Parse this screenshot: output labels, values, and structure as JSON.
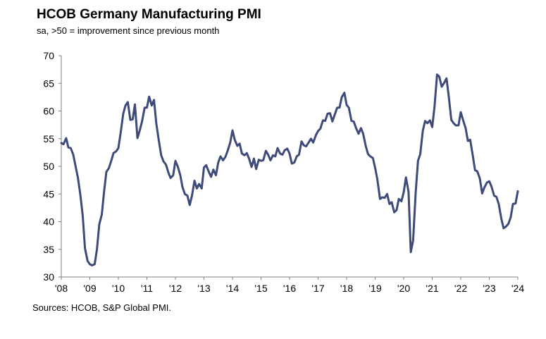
{
  "title": "HCOB Germany Manufacturing PMI",
  "subtitle": "sa, >50 = improvement since previous month",
  "source": "Sources: HCOB, S&P Global PMI.",
  "chart_data": {
    "type": "line",
    "line_color": "#3d4a7a",
    "grid": false,
    "xlim": [
      2008,
      2024
    ],
    "ylim": [
      30,
      70
    ],
    "x_ticks": [
      {
        "x": 2008,
        "label": "'08"
      },
      {
        "x": 2009,
        "label": "'09"
      },
      {
        "x": 2010,
        "label": "'10"
      },
      {
        "x": 2011,
        "label": "'11"
      },
      {
        "x": 2012,
        "label": "'12"
      },
      {
        "x": 2013,
        "label": "'13"
      },
      {
        "x": 2014,
        "label": "'14"
      },
      {
        "x": 2015,
        "label": "'15"
      },
      {
        "x": 2016,
        "label": "'16"
      },
      {
        "x": 2017,
        "label": "'17"
      },
      {
        "x": 2018,
        "label": "'18"
      },
      {
        "x": 2019,
        "label": "'19"
      },
      {
        "x": 2020,
        "label": "'20"
      },
      {
        "x": 2021,
        "label": "'21"
      },
      {
        "x": 2022,
        "label": "'22"
      },
      {
        "x": 2023,
        "label": "'23"
      },
      {
        "x": 2024,
        "label": "'24"
      }
    ],
    "y_ticks": [
      30,
      35,
      40,
      45,
      50,
      55,
      60,
      65,
      70
    ],
    "series": [
      {
        "x": [
          2008.0,
          2008.08,
          2008.17,
          2008.25,
          2008.33,
          2008.42,
          2008.5,
          2008.58,
          2008.67,
          2008.75,
          2008.83,
          2008.92,
          2009.0,
          2009.08,
          2009.17,
          2009.25,
          2009.33,
          2009.42,
          2009.5,
          2009.58,
          2009.67,
          2009.75,
          2009.83,
          2009.92,
          2010.0,
          2010.08,
          2010.17,
          2010.25,
          2010.33,
          2010.42,
          2010.5,
          2010.58,
          2010.67,
          2010.75,
          2010.83,
          2010.92,
          2011.0,
          2011.08,
          2011.17,
          2011.25,
          2011.33,
          2011.42,
          2011.5,
          2011.58,
          2011.67,
          2011.75,
          2011.83,
          2011.92,
          2012.0,
          2012.08,
          2012.17,
          2012.25,
          2012.33,
          2012.42,
          2012.5,
          2012.58,
          2012.67,
          2012.75,
          2012.83,
          2012.92,
          2013.0,
          2013.08,
          2013.17,
          2013.25,
          2013.33,
          2013.42,
          2013.5,
          2013.58,
          2013.67,
          2013.75,
          2013.83,
          2013.92,
          2014.0,
          2014.08,
          2014.17,
          2014.25,
          2014.33,
          2014.42,
          2014.5,
          2014.58,
          2014.67,
          2014.75,
          2014.83,
          2014.92,
          2015.0,
          2015.08,
          2015.17,
          2015.25,
          2015.33,
          2015.42,
          2015.5,
          2015.58,
          2015.67,
          2015.75,
          2015.83,
          2015.92,
          2016.0,
          2016.08,
          2016.17,
          2016.25,
          2016.33,
          2016.42,
          2016.5,
          2016.58,
          2016.67,
          2016.75,
          2016.83,
          2016.92,
          2017.0,
          2017.08,
          2017.17,
          2017.25,
          2017.33,
          2017.42,
          2017.5,
          2017.58,
          2017.67,
          2017.75,
          2017.83,
          2017.92,
          2018.0,
          2018.08,
          2018.17,
          2018.25,
          2018.33,
          2018.42,
          2018.5,
          2018.58,
          2018.67,
          2018.75,
          2018.83,
          2018.92,
          2019.0,
          2019.08,
          2019.17,
          2019.25,
          2019.33,
          2019.42,
          2019.5,
          2019.58,
          2019.67,
          2019.75,
          2019.83,
          2019.92,
          2020.0,
          2020.08,
          2020.17,
          2020.25,
          2020.33,
          2020.42,
          2020.5,
          2020.58,
          2020.67,
          2020.75,
          2020.83,
          2020.92,
          2021.0,
          2021.08,
          2021.17,
          2021.25,
          2021.33,
          2021.42,
          2021.5,
          2021.58,
          2021.67,
          2021.75,
          2021.83,
          2021.92,
          2022.0,
          2022.08,
          2022.17,
          2022.25,
          2022.33,
          2022.42,
          2022.5,
          2022.58,
          2022.67,
          2022.75,
          2022.83,
          2022.92,
          2023.0,
          2023.08,
          2023.17,
          2023.25,
          2023.33,
          2023.42,
          2023.5,
          2023.58,
          2023.67,
          2023.75,
          2023.83,
          2023.92,
          2024.0
        ],
        "values": [
          54.2,
          54.0,
          55.1,
          53.4,
          53.3,
          52.1,
          50.0,
          48.0,
          44.8,
          41.1,
          35.2,
          32.9,
          32.3,
          32.1,
          32.3,
          35.0,
          39.5,
          41.3,
          45.5,
          49.0,
          49.7,
          51.0,
          52.4,
          52.7,
          53.3,
          56.0,
          59.5,
          61.0,
          61.6,
          58.4,
          58.5,
          61.2,
          55.1,
          56.5,
          58.1,
          60.6,
          60.6,
          62.6,
          61.0,
          62.0,
          57.7,
          54.6,
          52.0,
          50.9,
          50.3,
          48.9,
          47.9,
          48.4,
          51.0,
          50.0,
          48.4,
          46.2,
          45.0,
          44.7,
          43.0,
          44.7,
          47.4,
          46.0,
          46.8,
          46.0,
          49.8,
          50.2,
          49.0,
          48.1,
          49.4,
          48.4,
          50.7,
          51.8,
          51.1,
          51.7,
          52.8,
          54.3,
          56.5,
          54.8,
          53.7,
          54.1,
          52.3,
          52.0,
          52.4,
          51.4,
          49.9,
          51.4,
          49.5,
          51.2,
          51.0,
          51.1,
          52.8,
          52.1,
          51.1,
          52.0,
          51.8,
          53.3,
          52.3,
          52.1,
          52.9,
          53.2,
          52.3,
          50.5,
          50.7,
          51.8,
          52.1,
          54.5,
          53.8,
          53.6,
          54.3,
          55.0,
          54.3,
          55.6,
          56.4,
          56.8,
          58.3,
          58.2,
          59.5,
          59.6,
          58.1,
          59.3,
          60.6,
          60.6,
          62.5,
          63.3,
          61.1,
          60.6,
          58.2,
          58.1,
          56.9,
          55.9,
          56.9,
          55.9,
          53.7,
          52.2,
          51.8,
          51.5,
          49.7,
          47.6,
          44.1,
          44.4,
          44.3,
          45.0,
          43.2,
          43.5,
          41.7,
          42.1,
          44.1,
          43.7,
          45.3,
          48.0,
          45.4,
          34.5,
          36.6,
          45.2,
          51.0,
          52.2,
          56.4,
          58.2,
          57.8,
          58.3,
          57.1,
          60.7,
          66.6,
          66.2,
          64.4,
          65.1,
          65.9,
          62.6,
          58.4,
          57.8,
          57.4,
          57.4,
          59.8,
          58.4,
          56.9,
          54.6,
          54.8,
          52.0,
          49.3,
          49.1,
          47.8,
          45.1,
          46.2,
          47.1,
          47.3,
          46.3,
          44.7,
          44.5,
          43.2,
          40.6,
          38.8,
          39.1,
          39.6,
          40.8,
          43.2,
          43.3,
          45.5
        ]
      }
    ]
  }
}
